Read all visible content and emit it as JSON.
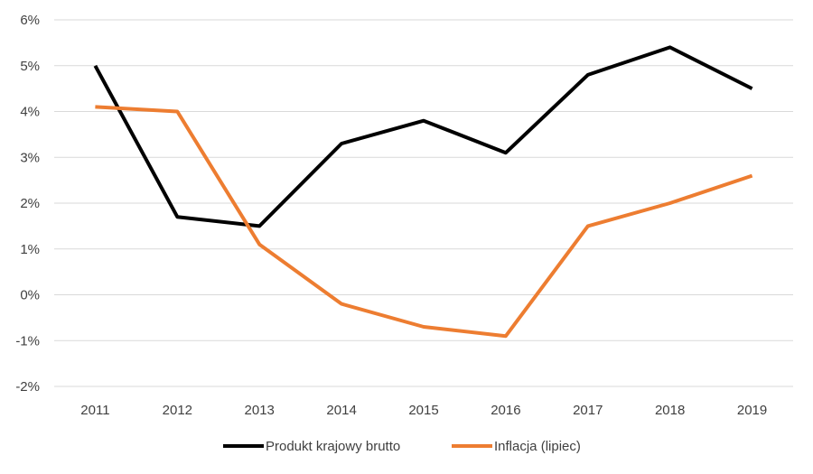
{
  "chart_data": {
    "type": "line",
    "title": "",
    "xlabel": "",
    "ylabel": "",
    "categories": [
      "2011",
      "2012",
      "2013",
      "2014",
      "2015",
      "2016",
      "2017",
      "2018",
      "2019"
    ],
    "ylim": [
      -2,
      6
    ],
    "yticks": [
      -2,
      -1,
      0,
      1,
      2,
      3,
      4,
      5,
      6
    ],
    "ytick_labels": [
      "-2%",
      "-1%",
      "0%",
      "1%",
      "2%",
      "3%",
      "4%",
      "5%",
      "6%"
    ],
    "grid": "horizontal",
    "legend_position": "bottom",
    "series": [
      {
        "name": "Produkt krajowy brutto",
        "color": "#000000",
        "values": [
          5.0,
          1.7,
          1.5,
          3.3,
          3.8,
          3.1,
          4.8,
          5.4,
          4.5
        ]
      },
      {
        "name": "Inflacja (lipiec)",
        "color": "#ED7D31",
        "values": [
          4.1,
          4.0,
          1.1,
          -0.2,
          -0.7,
          -0.9,
          1.5,
          2.0,
          2.6
        ]
      }
    ]
  }
}
